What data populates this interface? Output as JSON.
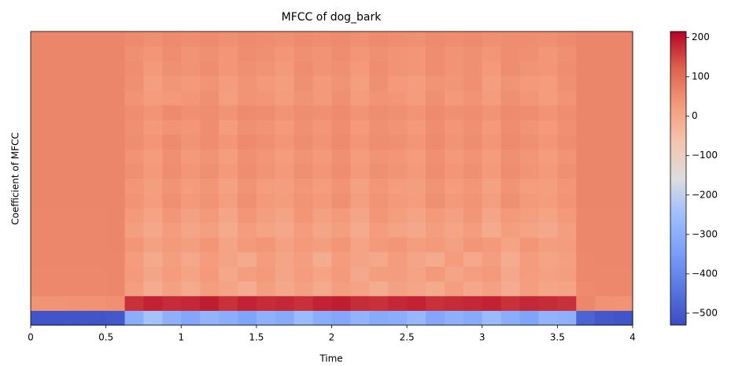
{
  "chart_data": {
    "type": "heatmap",
    "title": "MFCC of dog_bark",
    "xlabel": "Time",
    "ylabel": "Coefficient of MFCC",
    "colormap": "coolwarm",
    "xlim": [
      0,
      4
    ],
    "xticks": [
      0,
      0.5,
      1,
      1.5,
      2,
      2.5,
      3,
      3.5,
      4
    ],
    "clim": [
      -530,
      215
    ],
    "cticks": [
      {
        "value": -500,
        "label": "−500"
      },
      {
        "value": -400,
        "label": "−400"
      },
      {
        "value": -300,
        "label": "−300"
      },
      {
        "value": -200,
        "label": "−200"
      },
      {
        "value": -100,
        "label": "−100"
      },
      0,
      100,
      200
    ],
    "values": [
      [
        -510,
        -510,
        -510,
        -510,
        -505,
        -300,
        -240,
        -290,
        -320,
        -280,
        -300,
        -330,
        -290,
        -310,
        -260,
        -300,
        -320,
        -280,
        -310,
        -300,
        -270,
        -320,
        -290,
        -310,
        -260,
        -300,
        -330,
        -280,
        -290,
        -480,
        -505,
        -510
      ],
      [
        40,
        40,
        42,
        42,
        45,
        170,
        185,
        175,
        180,
        190,
        170,
        185,
        175,
        180,
        170,
        185,
        190,
        175,
        170,
        180,
        185,
        170,
        175,
        180,
        185,
        170,
        180,
        175,
        170,
        60,
        42,
        40
      ],
      [
        58,
        58,
        58,
        58,
        60,
        20,
        -10,
        15,
        -5,
        20,
        10,
        -10,
        20,
        0,
        15,
        -5,
        20,
        10,
        -10,
        15,
        5,
        -5,
        20,
        0,
        15,
        -10,
        20,
        5,
        10,
        55,
        58,
        58
      ],
      [
        58,
        58,
        58,
        58,
        60,
        30,
        5,
        25,
        10,
        30,
        0,
        20,
        30,
        5,
        25,
        10,
        30,
        0,
        20,
        25,
        10,
        30,
        5,
        20,
        30,
        0,
        25,
        15,
        20,
        58,
        58,
        58
      ],
      [
        60,
        60,
        60,
        60,
        60,
        25,
        -5,
        20,
        0,
        25,
        10,
        -5,
        25,
        5,
        20,
        -10,
        25,
        10,
        0,
        25,
        5,
        -5,
        25,
        0,
        20,
        -10,
        25,
        10,
        15,
        58,
        60,
        60
      ],
      [
        60,
        60,
        60,
        60,
        62,
        35,
        15,
        30,
        20,
        35,
        10,
        30,
        35,
        15,
        30,
        20,
        35,
        10,
        30,
        35,
        20,
        30,
        15,
        35,
        30,
        10,
        35,
        20,
        25,
        60,
        60,
        60
      ],
      [
        60,
        60,
        60,
        60,
        62,
        20,
        0,
        25,
        5,
        20,
        -5,
        25,
        10,
        0,
        25,
        5,
        20,
        -5,
        25,
        10,
        0,
        20,
        5,
        25,
        -5,
        20,
        10,
        0,
        20,
        60,
        60,
        60
      ],
      [
        60,
        60,
        60,
        60,
        62,
        30,
        10,
        35,
        15,
        30,
        5,
        35,
        20,
        10,
        35,
        15,
        30,
        5,
        35,
        20,
        10,
        30,
        15,
        35,
        5,
        30,
        20,
        10,
        30,
        60,
        60,
        60
      ],
      [
        62,
        62,
        62,
        62,
        62,
        40,
        25,
        45,
        30,
        40,
        20,
        45,
        30,
        25,
        40,
        30,
        45,
        20,
        40,
        30,
        25,
        45,
        30,
        40,
        20,
        45,
        30,
        25,
        40,
        62,
        62,
        62
      ],
      [
        62,
        62,
        62,
        62,
        62,
        35,
        20,
        40,
        25,
        35,
        15,
        40,
        25,
        20,
        35,
        25,
        40,
        15,
        35,
        25,
        20,
        40,
        25,
        35,
        15,
        40,
        25,
        20,
        35,
        62,
        62,
        62
      ],
      [
        62,
        62,
        62,
        62,
        62,
        45,
        30,
        50,
        35,
        45,
        30,
        50,
        40,
        30,
        45,
        35,
        50,
        30,
        45,
        40,
        30,
        50,
        35,
        45,
        30,
        50,
        40,
        30,
        45,
        62,
        62,
        62
      ],
      [
        62,
        62,
        62,
        62,
        62,
        40,
        25,
        45,
        30,
        40,
        20,
        45,
        35,
        25,
        40,
        30,
        45,
        25,
        40,
        35,
        25,
        45,
        30,
        40,
        25,
        45,
        35,
        25,
        40,
        62,
        62,
        62
      ],
      [
        62,
        62,
        62,
        62,
        62,
        50,
        35,
        55,
        40,
        50,
        35,
        55,
        45,
        35,
        50,
        40,
        55,
        35,
        50,
        45,
        35,
        55,
        40,
        50,
        35,
        55,
        45,
        35,
        50,
        62,
        62,
        62
      ],
      [
        62,
        62,
        62,
        62,
        62,
        45,
        30,
        40,
        35,
        50,
        25,
        45,
        40,
        30,
        45,
        35,
        50,
        30,
        45,
        40,
        30,
        50,
        35,
        45,
        30,
        50,
        40,
        30,
        45,
        62,
        62,
        62
      ],
      [
        62,
        62,
        62,
        62,
        62,
        50,
        40,
        55,
        45,
        50,
        40,
        55,
        50,
        40,
        50,
        45,
        55,
        40,
        50,
        45,
        40,
        55,
        45,
        50,
        40,
        55,
        50,
        40,
        50,
        62,
        62,
        62
      ],
      [
        62,
        62,
        62,
        62,
        62,
        40,
        25,
        30,
        35,
        45,
        20,
        40,
        35,
        25,
        40,
        30,
        45,
        25,
        40,
        35,
        25,
        45,
        30,
        40,
        25,
        45,
        35,
        25,
        40,
        62,
        62,
        62
      ],
      [
        62,
        62,
        62,
        62,
        62,
        45,
        20,
        35,
        30,
        40,
        25,
        40,
        30,
        20,
        45,
        30,
        40,
        20,
        45,
        30,
        25,
        40,
        35,
        45,
        20,
        40,
        30,
        25,
        45,
        62,
        62,
        62
      ],
      [
        62,
        62,
        62,
        62,
        62,
        50,
        30,
        45,
        40,
        50,
        35,
        45,
        40,
        30,
        50,
        40,
        45,
        30,
        50,
        40,
        35,
        50,
        40,
        45,
        30,
        50,
        40,
        35,
        50,
        62,
        62,
        62
      ],
      [
        62,
        62,
        62,
        62,
        62,
        45,
        35,
        50,
        40,
        45,
        35,
        50,
        45,
        35,
        45,
        40,
        50,
        35,
        45,
        40,
        35,
        50,
        40,
        45,
        35,
        50,
        45,
        35,
        45,
        62,
        62,
        62
      ],
      [
        62,
        62,
        62,
        62,
        62,
        55,
        45,
        55,
        50,
        55,
        45,
        55,
        50,
        45,
        55,
        50,
        55,
        45,
        55,
        50,
        45,
        55,
        50,
        55,
        45,
        50,
        50,
        45,
        55,
        62,
        62,
        62
      ]
    ]
  }
}
